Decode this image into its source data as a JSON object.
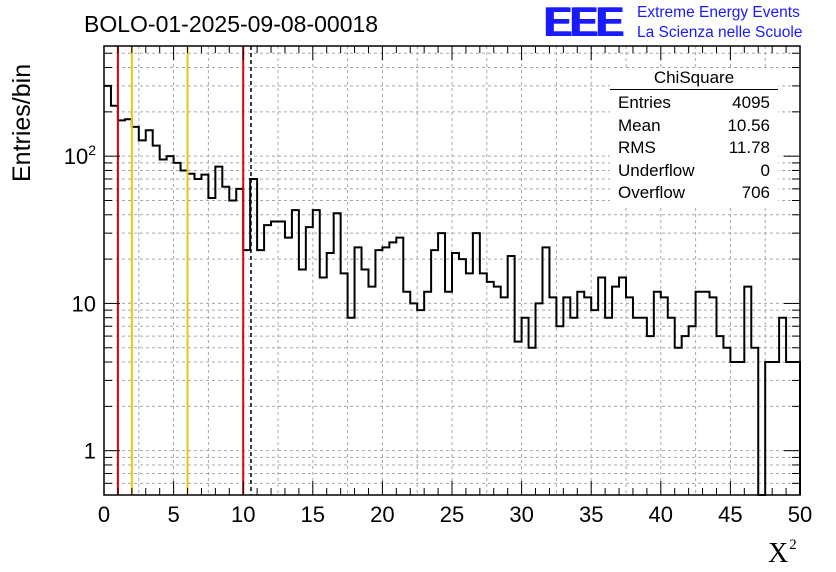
{
  "title": "BOLO-01-2025-09-08-00018",
  "branding": {
    "logo_text": "EEE",
    "line1": "Extreme Energy Events",
    "line2": "La Scienza nelle Scuole",
    "color": "#1a1aff"
  },
  "stats_box": {
    "title": "ChiSquare",
    "rows": [
      {
        "label": "Entries",
        "value": "4095"
      },
      {
        "label": "Mean",
        "value": "10.56"
      },
      {
        "label": "RMS",
        "value": "11.78"
      },
      {
        "label": "Underflow",
        "value": "0"
      },
      {
        "label": "Overflow",
        "value": "706"
      }
    ]
  },
  "chart_data": {
    "type": "bar",
    "subtype": "histogram-step",
    "title": "BOLO-01-2025-09-08-00018",
    "xlabel": "X",
    "xlabel_superscript": "2",
    "ylabel": "Entries/bin",
    "xlim": [
      0,
      50
    ],
    "ylim": [
      0.5,
      560
    ],
    "yscale": "log",
    "grid": true,
    "bin_width": 0.5,
    "x_ticks": [
      "0",
      "5",
      "10",
      "15",
      "20",
      "25",
      "30",
      "35",
      "40",
      "45",
      "50"
    ],
    "y_ticks": [
      {
        "value": 1,
        "label": "1"
      },
      {
        "value": 10,
        "label": "10"
      },
      {
        "value": 100,
        "label": "10",
        "exp": "2"
      }
    ],
    "values": [
      300,
      220,
      175,
      178,
      158,
      128,
      150,
      118,
      95,
      100,
      90,
      80,
      76,
      70,
      75,
      52,
      85,
      62,
      50,
      60,
      23,
      70,
      23,
      34,
      36,
      36,
      28,
      43,
      17,
      33,
      43,
      15,
      22,
      41,
      16,
      8,
      24,
      17,
      13,
      23,
      24,
      26,
      28,
      12,
      10,
      9,
      12,
      23,
      30,
      12,
      22,
      20,
      16,
      30,
      16,
      14,
      13,
      11,
      21,
      5.5,
      8,
      5,
      10,
      24,
      11,
      7,
      11,
      8,
      12,
      11,
      9,
      15,
      8,
      13,
      15,
      11,
      8,
      8,
      6,
      12,
      11,
      8,
      5,
      6,
      7,
      12,
      12,
      11,
      6,
      5,
      4,
      4,
      13,
      5,
      0,
      4,
      4,
      8,
      4,
      4
    ],
    "reference_lines": [
      {
        "x": 1,
        "color": "#e00000",
        "style": "solid"
      },
      {
        "x": 2,
        "color": "#f2c20c",
        "style": "solid"
      },
      {
        "x": 6,
        "color": "#f2c20c",
        "style": "solid"
      },
      {
        "x": 10,
        "color": "#e00000",
        "style": "solid"
      },
      {
        "x": 10.56,
        "color": "#000000",
        "style": "dashed"
      }
    ]
  }
}
